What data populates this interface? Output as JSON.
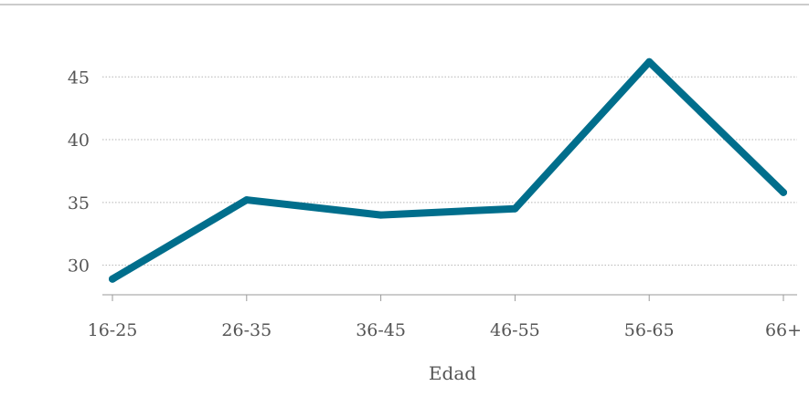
{
  "chart_data": {
    "type": "line",
    "title": "",
    "xlabel": "Edad",
    "ylabel": "",
    "categories": [
      "16-25",
      "26-35",
      "36-45",
      "46-55",
      "56-65",
      "66+"
    ],
    "series": [
      {
        "values": [
          28.9,
          35.2,
          34.0,
          34.5,
          46.2,
          35.8
        ]
      }
    ],
    "yticks": [
      30,
      35,
      40,
      45
    ],
    "ylim": [
      28.3,
      48.8
    ],
    "grid": true,
    "line_color": "#006e8c"
  }
}
